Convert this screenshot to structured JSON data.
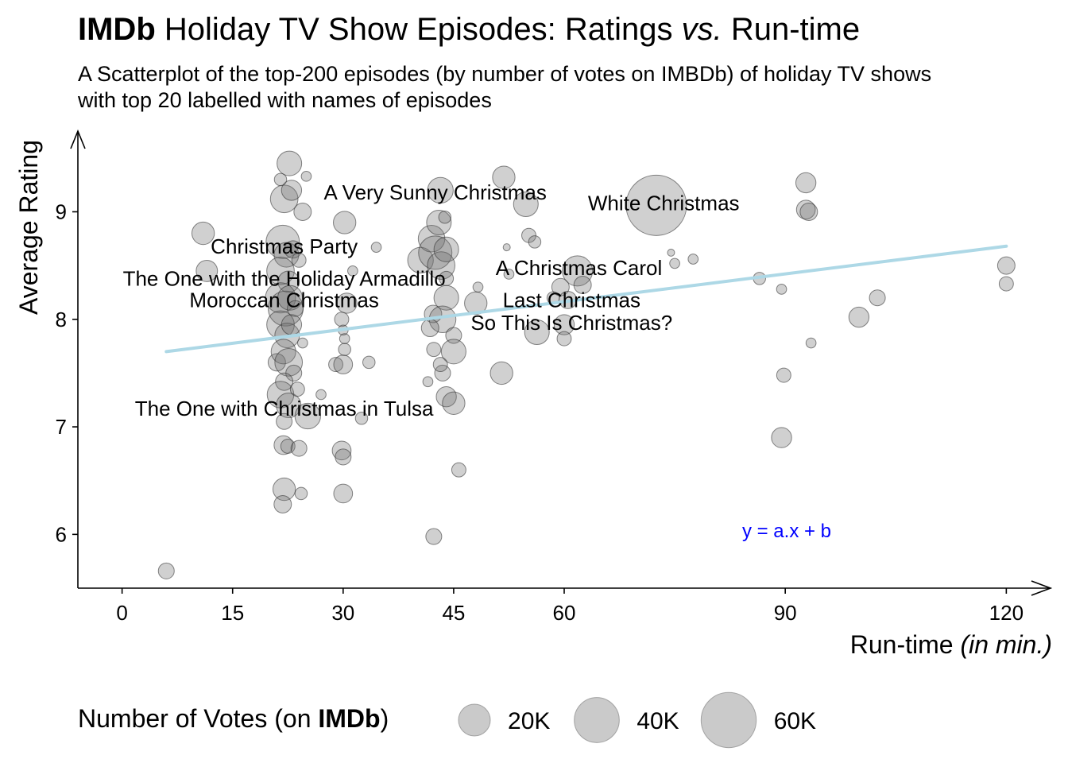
{
  "title": {
    "bold": "IMDb",
    "part1": " Holiday TV Show Episodes: Ratings ",
    "italic": "vs.",
    "part2": " Run-time"
  },
  "subtitle": {
    "line1": "A Scatterplot of the top-200 episodes (by number of votes on IMBDb) of holiday TV shows",
    "line2": "with top 20 labelled with names of episodes"
  },
  "equation_label": "y = a.x + b",
  "legend": {
    "title_pre": "Number of Votes (on ",
    "title_bold": "IMDb",
    "title_post": ")",
    "keys": [
      {
        "label": "20K",
        "votes": 20000
      },
      {
        "label": "40K",
        "votes": 40000
      },
      {
        "label": "60K",
        "votes": 60000
      }
    ]
  },
  "chart_data": {
    "type": "scatter",
    "title": "IMDb Holiday TV Show Episodes: Ratings vs. Run-time",
    "xlabel_main": "Run-time ",
    "xlabel_italic": "(in min.)",
    "ylabel": "Average Rating",
    "xlim": [
      -6,
      126
    ],
    "ylim": [
      5.5,
      9.75
    ],
    "xticks": [
      0,
      15,
      30,
      45,
      60,
      90,
      120
    ],
    "yticks": [
      6,
      7,
      8,
      9
    ],
    "grid": false,
    "trend_line": {
      "x": [
        6,
        120
      ],
      "y": [
        7.7,
        8.68
      ],
      "color": "#add8e6"
    },
    "points": [
      {
        "x": 22.7,
        "y": 9.45,
        "votes": 12000
      },
      {
        "x": 22.0,
        "y": 9.12,
        "votes": 15000
      },
      {
        "x": 23.0,
        "y": 9.2,
        "votes": 8000
      },
      {
        "x": 24.5,
        "y": 9.0,
        "votes": 6000
      },
      {
        "x": 25.0,
        "y": 9.33,
        "votes": 2000
      },
      {
        "x": 21.5,
        "y": 9.3,
        "votes": 3000
      },
      {
        "x": 11.0,
        "y": 8.8,
        "votes": 10000
      },
      {
        "x": 11.5,
        "y": 8.45,
        "votes": 9000
      },
      {
        "x": 21.8,
        "y": 8.72,
        "votes": 22000
      },
      {
        "x": 22.3,
        "y": 8.6,
        "votes": 12000
      },
      {
        "x": 21.5,
        "y": 8.45,
        "votes": 15000
      },
      {
        "x": 22.6,
        "y": 8.35,
        "votes": 9000
      },
      {
        "x": 23.2,
        "y": 8.65,
        "votes": 6000
      },
      {
        "x": 24.0,
        "y": 8.55,
        "votes": 4000
      },
      {
        "x": 21.5,
        "y": 8.2,
        "votes": 18000
      },
      {
        "x": 22.2,
        "y": 8.1,
        "votes": 24000
      },
      {
        "x": 22.8,
        "y": 8.2,
        "votes": 12000
      },
      {
        "x": 23.5,
        "y": 8.1,
        "votes": 5000
      },
      {
        "x": 21.5,
        "y": 7.95,
        "votes": 15000
      },
      {
        "x": 22.4,
        "y": 7.85,
        "votes": 12000
      },
      {
        "x": 23.0,
        "y": 7.95,
        "votes": 8000
      },
      {
        "x": 21.0,
        "y": 7.6,
        "votes": 6000
      },
      {
        "x": 21.9,
        "y": 7.7,
        "votes": 12000
      },
      {
        "x": 22.6,
        "y": 7.6,
        "votes": 15000
      },
      {
        "x": 23.3,
        "y": 7.5,
        "votes": 5000
      },
      {
        "x": 24.5,
        "y": 7.78,
        "votes": 2000
      },
      {
        "x": 22.0,
        "y": 7.42,
        "votes": 6000
      },
      {
        "x": 21.5,
        "y": 7.3,
        "votes": 14000
      },
      {
        "x": 22.6,
        "y": 7.2,
        "votes": 12000
      },
      {
        "x": 23.8,
        "y": 7.35,
        "votes": 4000
      },
      {
        "x": 25.2,
        "y": 7.1,
        "votes": 13000
      },
      {
        "x": 22.0,
        "y": 7.05,
        "votes": 5000
      },
      {
        "x": 21.9,
        "y": 6.83,
        "votes": 7000
      },
      {
        "x": 22.5,
        "y": 6.82,
        "votes": 4000
      },
      {
        "x": 24.0,
        "y": 6.8,
        "votes": 5000
      },
      {
        "x": 22.0,
        "y": 6.42,
        "votes": 10000
      },
      {
        "x": 21.8,
        "y": 6.28,
        "votes": 6000
      },
      {
        "x": 24.3,
        "y": 6.38,
        "votes": 3000
      },
      {
        "x": 27.0,
        "y": 7.3,
        "votes": 2000
      },
      {
        "x": 29.0,
        "y": 7.58,
        "votes": 4000
      },
      {
        "x": 30.2,
        "y": 8.9,
        "votes": 10000
      },
      {
        "x": 30.5,
        "y": 8.15,
        "votes": 8000
      },
      {
        "x": 29.8,
        "y": 8.0,
        "votes": 4000
      },
      {
        "x": 30.0,
        "y": 7.9,
        "votes": 2000
      },
      {
        "x": 30.2,
        "y": 7.72,
        "votes": 3000
      },
      {
        "x": 30.2,
        "y": 7.82,
        "votes": 2000
      },
      {
        "x": 30.0,
        "y": 7.58,
        "votes": 7000
      },
      {
        "x": 29.8,
        "y": 6.78,
        "votes": 7000
      },
      {
        "x": 30.0,
        "y": 6.72,
        "votes": 5000
      },
      {
        "x": 30.0,
        "y": 6.38,
        "votes": 7000
      },
      {
        "x": 31.3,
        "y": 8.45,
        "votes": 2000
      },
      {
        "x": 32.5,
        "y": 7.08,
        "votes": 3000
      },
      {
        "x": 33.5,
        "y": 7.6,
        "votes": 3000
      },
      {
        "x": 34.5,
        "y": 8.67,
        "votes": 2000
      },
      {
        "x": 40.5,
        "y": 8.55,
        "votes": 13000
      },
      {
        "x": 42.0,
        "y": 8.75,
        "votes": 14000
      },
      {
        "x": 42.5,
        "y": 8.62,
        "votes": 22000
      },
      {
        "x": 43.3,
        "y": 8.5,
        "votes": 15000
      },
      {
        "x": 44.0,
        "y": 8.65,
        "votes": 12000
      },
      {
        "x": 43.0,
        "y": 8.9,
        "votes": 12000
      },
      {
        "x": 43.2,
        "y": 9.2,
        "votes": 13000
      },
      {
        "x": 43.8,
        "y": 8.95,
        "votes": 3000
      },
      {
        "x": 44.0,
        "y": 8.38,
        "votes": 4000
      },
      {
        "x": 42.2,
        "y": 8.05,
        "votes": 6000
      },
      {
        "x": 44.0,
        "y": 8.2,
        "votes": 12000
      },
      {
        "x": 43.5,
        "y": 8.0,
        "votes": 14000
      },
      {
        "x": 41.8,
        "y": 7.92,
        "votes": 6000
      },
      {
        "x": 45.0,
        "y": 7.85,
        "votes": 5000
      },
      {
        "x": 42.3,
        "y": 7.72,
        "votes": 4000
      },
      {
        "x": 45.0,
        "y": 7.7,
        "votes": 12000
      },
      {
        "x": 43.5,
        "y": 7.5,
        "votes": 5000
      },
      {
        "x": 44.0,
        "y": 7.28,
        "votes": 8000
      },
      {
        "x": 45.0,
        "y": 7.22,
        "votes": 10000
      },
      {
        "x": 41.5,
        "y": 7.42,
        "votes": 2000
      },
      {
        "x": 43.2,
        "y": 7.58,
        "votes": 4000
      },
      {
        "x": 45.7,
        "y": 6.6,
        "votes": 4000
      },
      {
        "x": 42.3,
        "y": 5.98,
        "votes": 5000
      },
      {
        "x": 48.0,
        "y": 8.15,
        "votes": 10000
      },
      {
        "x": 48.3,
        "y": 8.3,
        "votes": 2000
      },
      {
        "x": 51.5,
        "y": 7.5,
        "votes": 10000
      },
      {
        "x": 51.8,
        "y": 9.32,
        "votes": 10000
      },
      {
        "x": 52.2,
        "y": 8.67,
        "votes": 1000
      },
      {
        "x": 52.5,
        "y": 8.42,
        "votes": 2000
      },
      {
        "x": 54.8,
        "y": 9.07,
        "votes": 12000
      },
      {
        "x": 55.2,
        "y": 8.78,
        "votes": 4000
      },
      {
        "x": 56.0,
        "y": 8.72,
        "votes": 3000
      },
      {
        "x": 56.3,
        "y": 7.88,
        "votes": 12000
      },
      {
        "x": 58.5,
        "y": 8.2,
        "votes": 3000
      },
      {
        "x": 59.5,
        "y": 8.3,
        "votes": 6000
      },
      {
        "x": 60.0,
        "y": 7.95,
        "votes": 8000
      },
      {
        "x": 60.0,
        "y": 7.82,
        "votes": 4000
      },
      {
        "x": 60.5,
        "y": 8.18,
        "votes": 6000
      },
      {
        "x": 61.8,
        "y": 8.45,
        "votes": 18000
      },
      {
        "x": 62.5,
        "y": 8.32,
        "votes": 6000
      },
      {
        "x": 72.5,
        "y": 9.06,
        "votes": 72000
      },
      {
        "x": 74.5,
        "y": 8.62,
        "votes": 1000
      },
      {
        "x": 75.0,
        "y": 8.52,
        "votes": 2000
      },
      {
        "x": 77.5,
        "y": 8.56,
        "votes": 2000
      },
      {
        "x": 86.5,
        "y": 8.38,
        "votes": 3000
      },
      {
        "x": 89.5,
        "y": 8.28,
        "votes": 2000
      },
      {
        "x": 89.8,
        "y": 7.48,
        "votes": 4000
      },
      {
        "x": 89.5,
        "y": 6.9,
        "votes": 8000
      },
      {
        "x": 92.8,
        "y": 9.27,
        "votes": 8000
      },
      {
        "x": 92.8,
        "y": 9.02,
        "votes": 7000
      },
      {
        "x": 93.2,
        "y": 9.0,
        "votes": 6000
      },
      {
        "x": 93.5,
        "y": 7.78,
        "votes": 2000
      },
      {
        "x": 100.0,
        "y": 8.02,
        "votes": 8000
      },
      {
        "x": 102.5,
        "y": 8.2,
        "votes": 5000
      },
      {
        "x": 120.0,
        "y": 8.5,
        "votes": 6000
      },
      {
        "x": 120.0,
        "y": 8.33,
        "votes": 4000
      },
      {
        "x": 6.0,
        "y": 5.66,
        "votes": 5000
      }
    ],
    "labels": [
      {
        "text": "A Very Sunny Christmas",
        "x": 42.5,
        "y": 9.18
      },
      {
        "text": "White Christmas",
        "x": 73.5,
        "y": 9.08
      },
      {
        "text": "Christmas Party",
        "x": 22.0,
        "y": 8.68
      },
      {
        "text": "A Christmas Carol",
        "x": 62.0,
        "y": 8.48
      },
      {
        "text": "The One with the Holiday Armadillo",
        "x": 22.0,
        "y": 8.38
      },
      {
        "text": "Moroccan Christmas",
        "x": 22.0,
        "y": 8.18
      },
      {
        "text": "Last Christmas",
        "x": 61.0,
        "y": 8.18
      },
      {
        "text": "So This Is Christmas?",
        "x": 61.0,
        "y": 7.97
      },
      {
        "text": "The One with Christmas in Tulsa",
        "x": 22.0,
        "y": 7.17
      }
    ]
  }
}
